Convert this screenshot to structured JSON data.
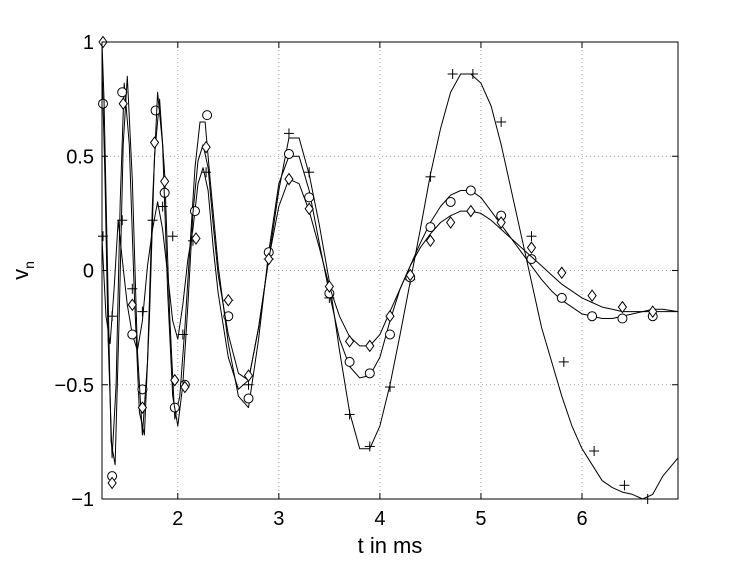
{
  "chart_data": {
    "type": "line",
    "xlabel": "t in ms",
    "ylabel_main": "v",
    "ylabel_sub": "n",
    "xlim": [
      1.25,
      6.95
    ],
    "ylim": [
      -1,
      1
    ],
    "grid": true,
    "x_ticks": [
      2,
      3,
      4,
      5,
      6
    ],
    "y_ticks": [
      -1,
      -0.5,
      0,
      0.5,
      1
    ],
    "x_tick_labels": [
      "2",
      "3",
      "4",
      "5",
      "6"
    ],
    "y_tick_labels": [
      "−1",
      "−0.5",
      "0",
      "0.5",
      "1"
    ],
    "series": [
      {
        "marker": "plus",
        "line": {
          "x": [
            1.25,
            1.29,
            1.33,
            1.37,
            1.41,
            1.45,
            1.5,
            1.55,
            1.6,
            1.65,
            1.7,
            1.75,
            1.8,
            1.85,
            1.9,
            1.95,
            2.0,
            2.05,
            2.1,
            2.15,
            2.2,
            2.25,
            2.3,
            2.35,
            2.4,
            2.5,
            2.6,
            2.7,
            2.8,
            2.9,
            3.0,
            3.1,
            3.2,
            3.3,
            3.4,
            3.5,
            3.6,
            3.7,
            3.8,
            3.9,
            4.0,
            4.1,
            4.2,
            4.3,
            4.4,
            4.5,
            4.6,
            4.7,
            4.8,
            4.9,
            5.0,
            5.1,
            5.2,
            5.3,
            5.4,
            5.5,
            5.6,
            5.7,
            5.8,
            5.9,
            6.0,
            6.1,
            6.2,
            6.3,
            6.4,
            6.5,
            6.6,
            6.7,
            6.8,
            6.95
          ],
          "y": [
            0.14,
            -0.2,
            -0.32,
            -0.08,
            0.22,
            0.05,
            -0.15,
            -0.28,
            -0.35,
            -0.22,
            0.02,
            0.18,
            0.3,
            0.18,
            -0.02,
            -0.22,
            -0.3,
            -0.15,
            0.05,
            0.18,
            0.38,
            0.45,
            0.35,
            0.1,
            -0.1,
            -0.38,
            -0.52,
            -0.48,
            -0.25,
            0.05,
            0.35,
            0.58,
            0.58,
            0.42,
            0.2,
            -0.05,
            -0.35,
            -0.62,
            -0.78,
            -0.78,
            -0.68,
            -0.5,
            -0.28,
            -0.05,
            0.18,
            0.42,
            0.62,
            0.78,
            0.86,
            0.86,
            0.82,
            0.72,
            0.55,
            0.35,
            0.15,
            -0.05,
            -0.25,
            -0.4,
            -0.55,
            -0.68,
            -0.78,
            -0.85,
            -0.92,
            -0.95,
            -0.97,
            -0.98,
            -1.0,
            -0.98,
            -0.9,
            -0.82
          ]
        },
        "markers": {
          "x": [
            1.26,
            1.35,
            1.45,
            1.55,
            1.65,
            1.75,
            1.85,
            1.95,
            2.05,
            2.15,
            2.28,
            2.5,
            2.7,
            2.9,
            3.1,
            3.3,
            3.5,
            3.7,
            3.9,
            4.1,
            4.3,
            4.5,
            4.72,
            4.92,
            5.2,
            5.5,
            5.82,
            6.12,
            6.42,
            6.65
          ],
          "y": [
            0.15,
            -0.2,
            0.22,
            -0.08,
            -0.18,
            0.22,
            0.28,
            0.15,
            -0.28,
            0.13,
            0.43,
            -0.13,
            -0.5,
            0.05,
            0.6,
            0.43,
            -0.12,
            -0.63,
            -0.77,
            -0.51,
            -0.04,
            0.41,
            0.86,
            0.86,
            0.65,
            0.15,
            -0.4,
            -0.79,
            -0.94,
            -1.0
          ]
        }
      },
      {
        "marker": "circle",
        "line": {
          "x": [
            1.25,
            1.28,
            1.31,
            1.35,
            1.39,
            1.43,
            1.47,
            1.52,
            1.57,
            1.62,
            1.67,
            1.72,
            1.77,
            1.82,
            1.87,
            1.92,
            1.97,
            2.02,
            2.07,
            2.12,
            2.17,
            2.22,
            2.27,
            2.32,
            2.4,
            2.5,
            2.6,
            2.7,
            2.8,
            2.9,
            3.0,
            3.1,
            3.2,
            3.3,
            3.4,
            3.5,
            3.6,
            3.7,
            3.8,
            3.9,
            4.0,
            4.1,
            4.2,
            4.3,
            4.4,
            4.5,
            4.6,
            4.7,
            4.8,
            4.9,
            5.0,
            5.1,
            5.2,
            5.3,
            5.4,
            5.5,
            5.6,
            5.7,
            5.8,
            5.9,
            6.0,
            6.1,
            6.2,
            6.3,
            6.4,
            6.5,
            6.6,
            6.7,
            6.8,
            6.95
          ],
          "y": [
            0.9,
            0.4,
            -0.3,
            -0.82,
            -0.5,
            0.3,
            0.82,
            0.55,
            -0.1,
            -0.62,
            -0.72,
            -0.2,
            0.5,
            0.75,
            0.42,
            -0.2,
            -0.65,
            -0.55,
            -0.25,
            0.1,
            0.45,
            0.65,
            0.65,
            0.4,
            0.02,
            -0.32,
            -0.55,
            -0.6,
            -0.3,
            0.08,
            0.38,
            0.5,
            0.5,
            0.35,
            0.12,
            -0.1,
            -0.3,
            -0.42,
            -0.47,
            -0.46,
            -0.38,
            -0.22,
            -0.08,
            0.02,
            0.12,
            0.21,
            0.28,
            0.33,
            0.35,
            0.35,
            0.32,
            0.26,
            0.2,
            0.14,
            0.08,
            0.02,
            -0.04,
            -0.09,
            -0.13,
            -0.16,
            -0.19,
            -0.2,
            -0.21,
            -0.21,
            -0.2,
            -0.19,
            -0.18,
            -0.17,
            -0.17,
            -0.18
          ]
        },
        "markers": {
          "x": [
            1.26,
            1.35,
            1.45,
            1.55,
            1.65,
            1.78,
            1.87,
            1.97,
            2.07,
            2.17,
            2.29,
            2.5,
            2.7,
            2.9,
            3.1,
            3.3,
            3.5,
            3.7,
            3.9,
            4.1,
            4.3,
            4.5,
            4.7,
            4.9,
            5.2,
            5.5,
            5.8,
            6.1,
            6.4,
            6.7
          ],
          "y": [
            0.73,
            -0.9,
            0.78,
            -0.28,
            -0.52,
            0.7,
            0.34,
            -0.6,
            -0.5,
            0.26,
            0.68,
            -0.2,
            -0.56,
            0.08,
            0.51,
            0.32,
            -0.1,
            -0.4,
            -0.45,
            -0.28,
            -0.03,
            0.19,
            0.3,
            0.35,
            0.24,
            0.05,
            -0.12,
            -0.2,
            -0.21,
            -0.2
          ]
        }
      },
      {
        "marker": "diamond",
        "line": {
          "x": [
            1.25,
            1.27,
            1.3,
            1.34,
            1.38,
            1.42,
            1.46,
            1.5,
            1.55,
            1.6,
            1.65,
            1.7,
            1.75,
            1.8,
            1.85,
            1.9,
            1.95,
            2.0,
            2.05,
            2.1,
            2.15,
            2.2,
            2.25,
            2.3,
            2.35,
            2.4,
            2.5,
            2.6,
            2.7,
            2.8,
            2.9,
            3.0,
            3.1,
            3.2,
            3.3,
            3.4,
            3.5,
            3.6,
            3.7,
            3.8,
            3.9,
            4.0,
            4.1,
            4.2,
            4.3,
            4.4,
            4.5,
            4.6,
            4.7,
            4.8,
            4.9,
            5.0,
            5.1,
            5.2,
            5.3,
            5.4,
            5.5,
            5.6,
            5.7,
            5.8,
            5.9,
            6.0,
            6.1,
            6.2,
            6.3,
            6.4,
            6.5,
            6.6,
            6.7,
            6.8,
            6.95
          ],
          "y": [
            1.0,
            0.75,
            0.1,
            -0.75,
            -0.85,
            -0.2,
            0.55,
            0.85,
            0.4,
            -0.35,
            -0.72,
            -0.4,
            0.3,
            0.78,
            0.55,
            -0.1,
            -0.55,
            -0.68,
            -0.5,
            -0.15,
            0.25,
            0.48,
            0.55,
            0.45,
            0.2,
            -0.02,
            -0.28,
            -0.45,
            -0.48,
            -0.25,
            0.05,
            0.28,
            0.4,
            0.38,
            0.26,
            0.1,
            -0.07,
            -0.2,
            -0.29,
            -0.33,
            -0.33,
            -0.28,
            -0.18,
            -0.08,
            0.02,
            0.1,
            0.16,
            0.21,
            0.24,
            0.26,
            0.26,
            0.25,
            0.22,
            0.18,
            0.14,
            0.1,
            0.06,
            0.02,
            -0.02,
            -0.06,
            -0.09,
            -0.12,
            -0.14,
            -0.16,
            -0.17,
            -0.18,
            -0.18,
            -0.18,
            -0.18,
            -0.18,
            -0.18
          ]
        },
        "markers": {
          "x": [
            1.26,
            1.35,
            1.46,
            1.55,
            1.65,
            1.77,
            1.87,
            1.97,
            2.07,
            2.18,
            2.28,
            2.5,
            2.7,
            2.9,
            3.1,
            3.3,
            3.5,
            3.7,
            3.9,
            4.1,
            4.3,
            4.5,
            4.7,
            4.9,
            5.2,
            5.5,
            5.8,
            6.1,
            6.4,
            6.7
          ],
          "y": [
            1.0,
            -0.93,
            0.73,
            -0.15,
            -0.6,
            0.56,
            0.39,
            -0.48,
            -0.51,
            0.14,
            0.54,
            -0.13,
            -0.46,
            0.05,
            0.4,
            0.27,
            -0.07,
            -0.31,
            -0.33,
            -0.2,
            -0.02,
            0.13,
            0.21,
            0.26,
            0.21,
            0.1,
            -0.01,
            -0.11,
            -0.16,
            -0.18
          ]
        }
      }
    ]
  }
}
